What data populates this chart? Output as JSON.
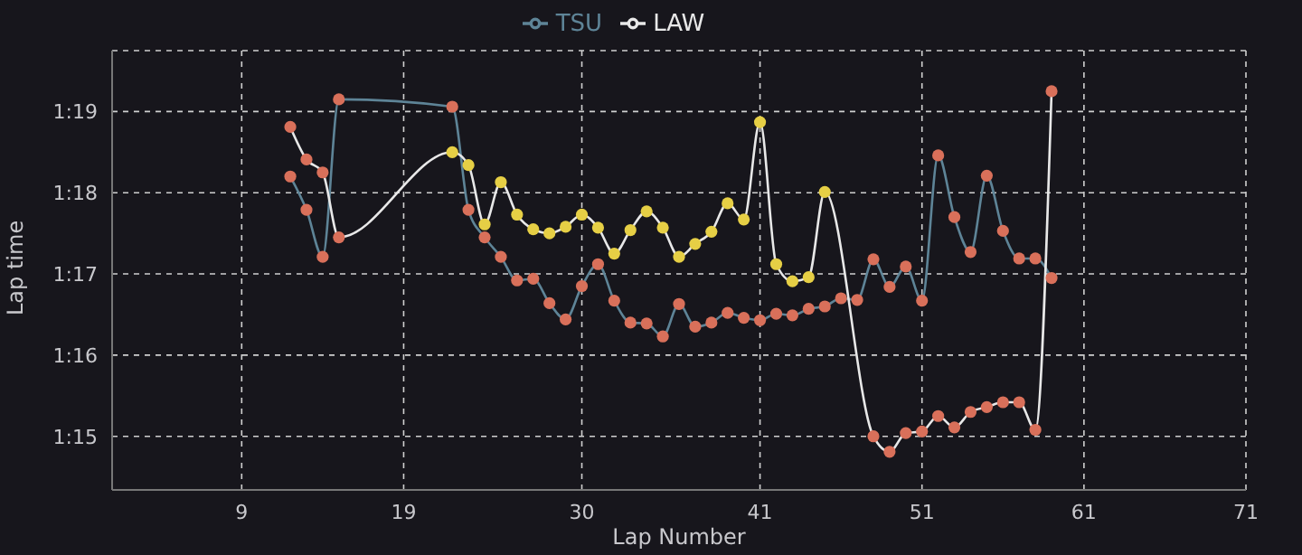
{
  "chart_data": {
    "type": "line",
    "xlabel": "Lap Number",
    "ylabel": "Lap time",
    "x": [
      12,
      13,
      14,
      15,
      22,
      23,
      24,
      25,
      26,
      27,
      28,
      29,
      30,
      31,
      32,
      33,
      34,
      35,
      36,
      37,
      38,
      39,
      40,
      41,
      42,
      43,
      44,
      45,
      46,
      47,
      48,
      49,
      50,
      51,
      52,
      53,
      54,
      55,
      56,
      57,
      58,
      59
    ],
    "series": [
      {
        "name": "TSU",
        "color": "#5e8497",
        "values": [
          78.2,
          77.79,
          77.21,
          79.15,
          79.06,
          77.79,
          77.45,
          77.21,
          76.92,
          76.94,
          76.64,
          76.44,
          76.85,
          77.12,
          76.67,
          76.4,
          76.39,
          76.23,
          76.63,
          76.35,
          76.4,
          76.52,
          76.46,
          76.43,
          76.51,
          76.49,
          76.57,
          76.6,
          76.7,
          76.68,
          77.18,
          76.84,
          77.09,
          76.67,
          78.46,
          77.7,
          77.27,
          78.21,
          77.53,
          77.19,
          77.19,
          76.95
        ],
        "colors": [
          "#d9705a",
          "#d9705a",
          "#d9705a",
          "#d9705a",
          "#d9705a",
          "#d9705a",
          "#d9705a",
          "#d9705a",
          "#d9705a",
          "#d9705a",
          "#d9705a",
          "#d9705a",
          "#d9705a",
          "#d9705a",
          "#d9705a",
          "#d9705a",
          "#d9705a",
          "#d9705a",
          "#d9705a",
          "#d9705a",
          "#d9705a",
          "#d9705a",
          "#d9705a",
          "#d9705a",
          "#d9705a",
          "#d9705a",
          "#d9705a",
          "#d9705a",
          "#d9705a",
          "#d9705a",
          "#d9705a",
          "#d9705a",
          "#d9705a",
          "#d9705a",
          "#d9705a",
          "#d9705a",
          "#d9705a",
          "#d9705a",
          "#d9705a",
          "#d9705a",
          "#d9705a",
          "#d9705a"
        ]
      },
      {
        "name": "LAW",
        "color": "#e8e8e8",
        "values": [
          78.81,
          78.41,
          78.25,
          77.45,
          78.5,
          78.34,
          77.61,
          78.13,
          77.73,
          77.55,
          77.5,
          77.58,
          77.73,
          77.57,
          77.25,
          77.54,
          77.77,
          77.57,
          77.21,
          77.37,
          77.52,
          77.87,
          77.67,
          78.87,
          77.12,
          76.91,
          76.96,
          78.01,
          null,
          null,
          75.0,
          74.81,
          75.04,
          75.06,
          75.25,
          75.11,
          75.3,
          75.36,
          75.42,
          75.42,
          75.08,
          79.25
        ],
        "colors": [
          "#d9705a",
          "#d9705a",
          "#d9705a",
          "#d9705a",
          "#e6cf45",
          "#e6cf45",
          "#e6cf45",
          "#e6cf45",
          "#e6cf45",
          "#e6cf45",
          "#e6cf45",
          "#e6cf45",
          "#e6cf45",
          "#e6cf45",
          "#e6cf45",
          "#e6cf45",
          "#e6cf45",
          "#e6cf45",
          "#e6cf45",
          "#e6cf45",
          "#e6cf45",
          "#e6cf45",
          "#e6cf45",
          "#e6cf45",
          "#e6cf45",
          "#e6cf45",
          "#e6cf45",
          "#e6cf45",
          null,
          null,
          "#d9705a",
          "#d9705a",
          "#d9705a",
          "#d9705a",
          "#d9705a",
          "#d9705a",
          "#d9705a",
          "#d9705a",
          "#d9705a",
          "#d9705a",
          "#d9705a",
          "#d9705a"
        ]
      }
    ],
    "xlim": [
      1,
      71
    ],
    "xticks": [
      9,
      19,
      30,
      41,
      51,
      61,
      71
    ],
    "ylim": [
      74.34,
      79.75
    ],
    "yticks": [
      {
        "value": 75,
        "label": "1:15"
      },
      {
        "value": 76,
        "label": "1:16"
      },
      {
        "value": 77,
        "label": "1:17"
      },
      {
        "value": 78,
        "label": "1:18"
      },
      {
        "value": 79,
        "label": "1:19"
      }
    ],
    "grid": true,
    "legend": "top",
    "marker": "circle",
    "line_style": "solid"
  }
}
